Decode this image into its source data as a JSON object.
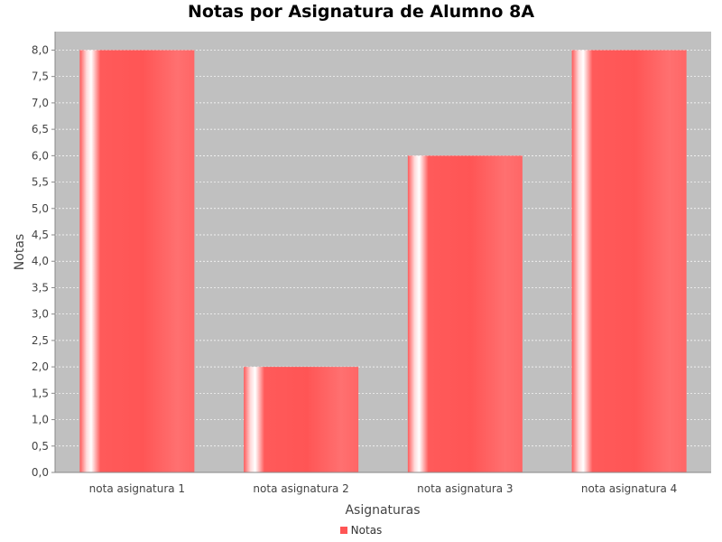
{
  "chart_data": {
    "type": "bar",
    "title": "Notas por Asignatura de Alumno 8A",
    "xlabel": "Asignaturas",
    "ylabel": "Notas",
    "categories": [
      "nota asignatura 1",
      "nota asignatura 2",
      "nota asignatura 3",
      "nota asignatura 4"
    ],
    "series": [
      {
        "name": "Notas",
        "values": [
          8.0,
          2.0,
          6.0,
          8.0
        ]
      }
    ],
    "ylim": [
      0,
      8.35
    ],
    "yticks": [
      "0,0",
      "0,5",
      "1,0",
      "1,5",
      "2,0",
      "2,5",
      "3,0",
      "3,5",
      "4,0",
      "4,5",
      "5,0",
      "5,5",
      "6,0",
      "6,5",
      "7,0",
      "7,5",
      "8,0"
    ],
    "grid": true,
    "legend_position": "bottom",
    "colors": {
      "plot_background": "#c0c0c0",
      "bar": "#ff5555",
      "gridline": "#ffffff",
      "axis": "#888888"
    }
  }
}
